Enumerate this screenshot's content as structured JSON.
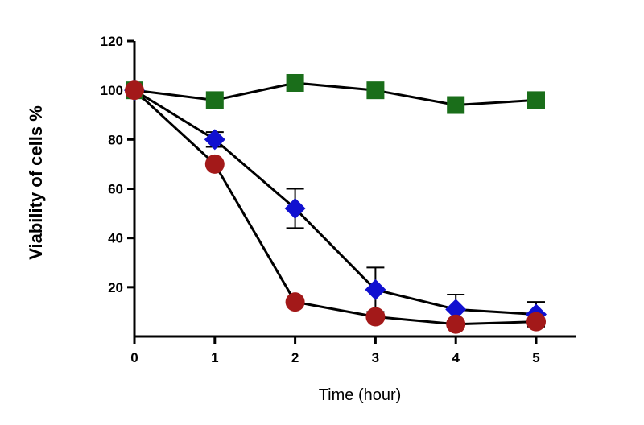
{
  "chart_data": {
    "type": "line",
    "title": "",
    "xlabel": "Time (hour)",
    "ylabel": "Viability of cells %",
    "x": [
      0,
      1,
      2,
      3,
      4,
      5
    ],
    "x_ticks": [
      "0",
      "1",
      "2",
      "3",
      "4",
      "5"
    ],
    "y_ticks": [
      "20",
      "40",
      "60",
      "80",
      "100",
      "120"
    ],
    "xlim": [
      0,
      5.5
    ],
    "ylim": [
      0,
      120
    ],
    "grid": false,
    "legend": "none",
    "series": [
      {
        "marker": "square",
        "color": "#1a6e1a",
        "values": [
          100,
          96,
          103,
          100,
          94,
          96
        ],
        "error": [
          0,
          0,
          0,
          0,
          0,
          0
        ]
      },
      {
        "marker": "diamond",
        "color": "#1010d0",
        "values": [
          100,
          80,
          52,
          19,
          11,
          9
        ],
        "error": [
          0,
          3,
          8,
          9,
          6,
          5
        ]
      },
      {
        "marker": "circle",
        "color": "#a31919",
        "values": [
          100,
          70,
          14,
          8,
          5,
          6
        ],
        "error": [
          0,
          0,
          0,
          0,
          0,
          0
        ]
      }
    ]
  }
}
